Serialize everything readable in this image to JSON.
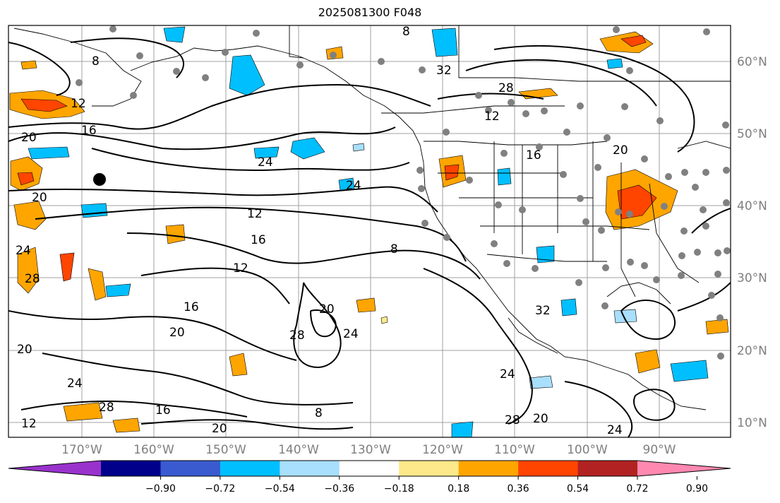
{
  "title": "2025081300 F048",
  "lat_labels": [
    "60°N",
    "50°N",
    "40°N",
    "30°N",
    "20°N",
    "10°N"
  ],
  "lon_labels": [
    "170°W",
    "160°W",
    "150°W",
    "140°W",
    "130°W",
    "120°W",
    "110°W",
    "100°W",
    "90°W"
  ],
  "colorbar": {
    "colors": [
      "#9932cc",
      "#00008b",
      "#3a5bd0",
      "#00bfff",
      "#a8dffc",
      "#ffffff",
      "#fde98a",
      "#ffa500",
      "#ff4500",
      "#b22222",
      "#ff88b0"
    ],
    "tick_labels": [
      "−0.90",
      "−0.72",
      "−0.54",
      "−0.36",
      "−0.18",
      "0.18",
      "0.36",
      "0.54",
      "0.72",
      "0.90"
    ]
  },
  "contour_labels": [
    "8",
    "12",
    "16",
    "20",
    "24",
    "28",
    "32",
    "8",
    "12",
    "16",
    "20",
    "24",
    "20",
    "12",
    "8",
    "12",
    "16",
    "20",
    "24",
    "28",
    "16",
    "20",
    "24",
    "28",
    "20",
    "24",
    "28",
    "12",
    "16",
    "20",
    "8",
    "24",
    "28",
    "32",
    "20",
    "24"
  ]
}
